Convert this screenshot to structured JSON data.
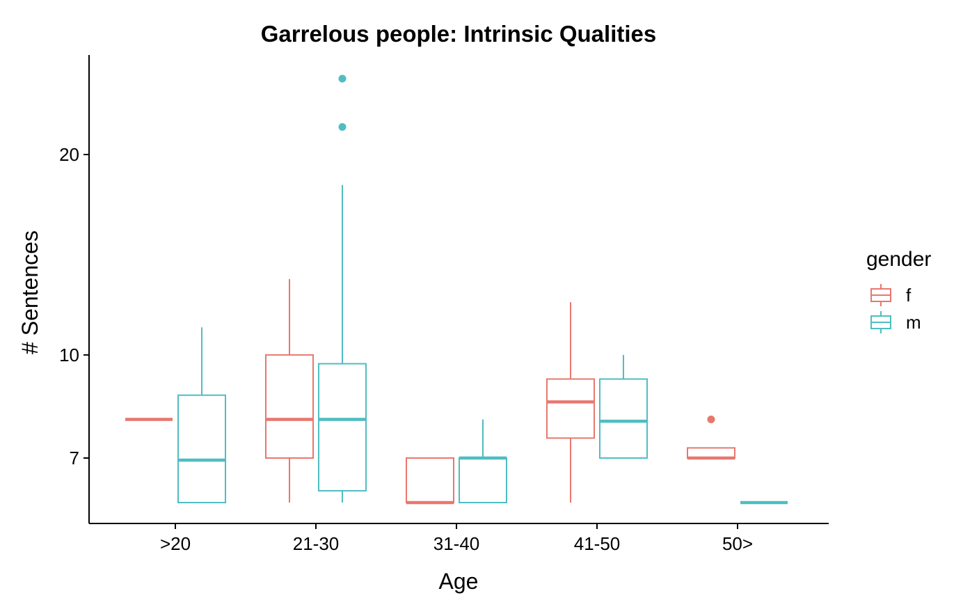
{
  "chart_data": {
    "type": "box",
    "title": "Garrelous people: Intrinsic Qualities",
    "xlabel": "Age",
    "ylabel": "# Sentences",
    "categories": [
      ">20",
      "21-30",
      "31-40",
      "41-50",
      "50>"
    ],
    "y_scale": "log",
    "ylim": [
      5.5,
      28
    ],
    "y_ticks": [
      7,
      10,
      20
    ],
    "legend": {
      "title": "gender",
      "position": "right"
    },
    "grid": false,
    "series": [
      {
        "name": "f",
        "color": "#E8776E",
        "boxes": [
          {
            "category": ">20",
            "min": 8,
            "q1": 8,
            "median": 8,
            "q3": 8,
            "max": 8,
            "outliers": []
          },
          {
            "category": "21-30",
            "min": 6,
            "q1": 7,
            "median": 8,
            "q3": 10,
            "max": 13,
            "outliers": []
          },
          {
            "category": "31-40",
            "min": 6,
            "q1": 6,
            "median": 6,
            "q3": 7,
            "max": 7,
            "outliers": []
          },
          {
            "category": "41-50",
            "min": 6,
            "q1": 7.5,
            "median": 8.5,
            "q3": 9.2,
            "max": 12,
            "outliers": []
          },
          {
            "category": "50>",
            "min": 7,
            "q1": 7,
            "median": 7,
            "q3": 7.25,
            "max": 7.25,
            "outliers": [
              8
            ]
          }
        ]
      },
      {
        "name": "m",
        "color": "#4FBDC1",
        "boxes": [
          {
            "category": ">20",
            "min": 6,
            "q1": 6,
            "median": 6.95,
            "q3": 8.7,
            "max": 11,
            "outliers": []
          },
          {
            "category": "21-30",
            "min": 6,
            "q1": 6.25,
            "median": 8,
            "q3": 9.7,
            "max": 18,
            "outliers": [
              22,
              26
            ]
          },
          {
            "category": "31-40",
            "min": 6,
            "q1": 6,
            "median": 7,
            "q3": 7,
            "max": 8,
            "outliers": []
          },
          {
            "category": "41-50",
            "min": 7,
            "q1": 7,
            "median": 7.95,
            "q3": 9.2,
            "max": 10,
            "outliers": []
          },
          {
            "category": "50>",
            "min": 6,
            "q1": 6,
            "median": 6,
            "q3": 6,
            "max": 6,
            "outliers": []
          }
        ]
      }
    ]
  }
}
